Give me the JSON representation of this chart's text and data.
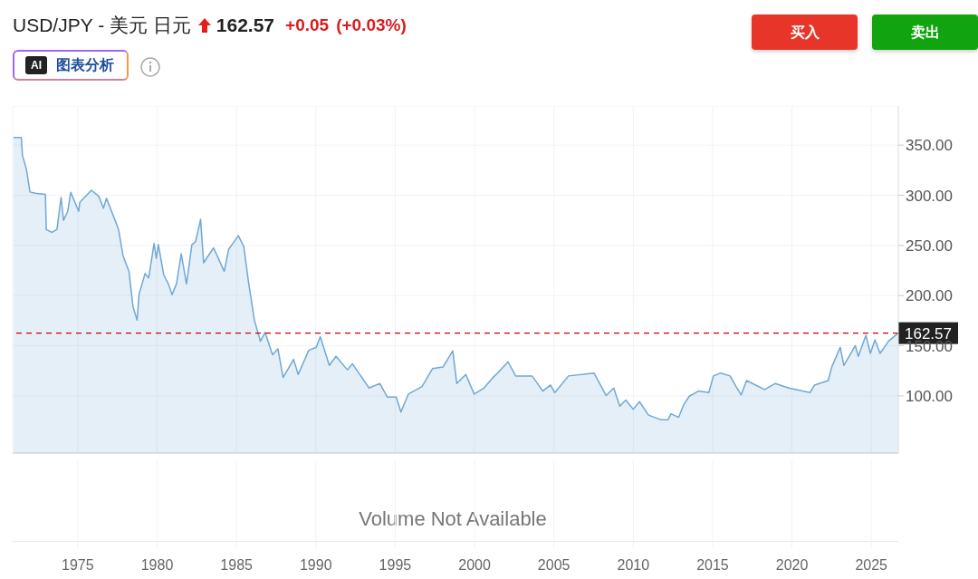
{
  "chart_data": {
    "type": "area",
    "title": "USD/JPY - 美元 日元",
    "annotations": [
      "162.57",
      "+0.05",
      "(+0.03%)",
      "AI",
      "图表分析",
      "买入",
      "卖出",
      "Volume Not Available"
    ],
    "x": [
      1970.95,
      1971.44,
      1971.52,
      1971.76,
      1971.99,
      1972.33,
      1972.96,
      1973.02,
      1973.38,
      1973.69,
      1973.95,
      1974.1,
      1974.37,
      1974.56,
      1975.06,
      1975.13,
      1975.86,
      1976.33,
      1976.62,
      1976.81,
      1977.28,
      1977.57,
      1977.85,
      1978.23,
      1978.48,
      1978.74,
      1978.86,
      1979.24,
      1979.47,
      1979.81,
      1979.95,
      1980.08,
      1980.42,
      1980.71,
      1980.94,
      1981.22,
      1981.52,
      1981.85,
      1982.19,
      1982.42,
      1982.74,
      1982.93,
      1983.56,
      1984.23,
      1984.51,
      1985.12,
      1985.46,
      1985.75,
      1986.13,
      1986.51,
      1986.8,
      1987.27,
      1987.61,
      1987.94,
      1988.6,
      1988.89,
      1989.55,
      1990.03,
      1990.28,
      1990.85,
      1991.27,
      1991.99,
      1992.31,
      1993.36,
      1994.03,
      1994.5,
      1995.07,
      1995.36,
      1995.83,
      1996.69,
      1997.36,
      1998.02,
      1998.63,
      1998.88,
      1999.45,
      1999.98,
      2000.59,
      2001.16,
      2001.45,
      2002.11,
      2002.59,
      2003.63,
      2004.3,
      2004.78,
      2005.06,
      2005.92,
      2007.53,
      2008.29,
      2008.77,
      2009.15,
      2009.53,
      2010.0,
      2010.39,
      2010.96,
      2011.72,
      2012.19,
      2012.38,
      2012.86,
      2013.18,
      2013.53,
      2014.1,
      2014.76,
      2015.05,
      2015.52,
      2016.1,
      2016.48,
      2016.8,
      2017.14,
      2018.28,
      2018.95,
      2019.8,
      2021.14,
      2021.42,
      2022.28,
      2022.51,
      2023.04,
      2023.27,
      2023.99,
      2024.18,
      2024.66,
      2024.94,
      2025.23,
      2025.55,
      2026.08,
      2026.69
    ],
    "series": [
      {
        "color": "#6fa8d6",
        "values": [
          357.5,
          357.5,
          339.4,
          326.5,
          303.3,
          302,
          301,
          265.8,
          263,
          266,
          298,
          275,
          284,
          303,
          284,
          293,
          305,
          299,
          287,
          297,
          278,
          266,
          240,
          224,
          189,
          175.5,
          201,
          222,
          217.6,
          252,
          237,
          251,
          220.5,
          211.6,
          201,
          211.6,
          241.7,
          211.6,
          250.7,
          253.7,
          276,
          232.7,
          247.6,
          224,
          246.3,
          259.7,
          249,
          214.6,
          175.5,
          154.4,
          163.4,
          141,
          147,
          118.3,
          136.4,
          121.4,
          145.4,
          148.5,
          159,
          130.4,
          139.4,
          126,
          131.9,
          107.8,
          112.4,
          98.8,
          98.8,
          83.8,
          101.8,
          109.3,
          127.3,
          128.9,
          144.9,
          112.4,
          121.4,
          101.8,
          107.8,
          118.3,
          122.8,
          134,
          119.9,
          119.9,
          104.8,
          110.8,
          103.3,
          119.9,
          122.8,
          100.3,
          107.8,
          89.8,
          95.8,
          86.7,
          94.3,
          80.8,
          76.3,
          76.3,
          82.2,
          78.6,
          91.2,
          99.7,
          104.8,
          103.3,
          119.9,
          122.8,
          119.9,
          109.3,
          101,
          115.3,
          106.3,
          112.4,
          107.8,
          103.3,
          110.8,
          115.3,
          128.9,
          148.5,
          130.4,
          150.1,
          139.4,
          160.5,
          142.4,
          156,
          142.4,
          154.4,
          162.57
        ]
      }
    ],
    "xlim": [
      1970.9,
      2026.7
    ],
    "xticks": [
      1975,
      1980,
      1985,
      1990,
      1995,
      2000,
      2005,
      2010,
      2015,
      2020,
      2025
    ],
    "ylim": [
      43,
      389
    ],
    "yticks": [
      {
        "value": 100,
        "label": "100.00"
      },
      {
        "value": 150,
        "label": "150.00"
      },
      {
        "value": 200,
        "label": "200.00"
      },
      {
        "value": 250,
        "label": "250.00"
      },
      {
        "value": 300,
        "label": "300.00"
      },
      {
        "value": 350,
        "label": "350.00"
      }
    ],
    "ref_lines": [
      {
        "axis": "y",
        "value": 162.57,
        "label": "162.57",
        "color": "#cc0000",
        "line_style": "dashed"
      }
    ],
    "grid": true
  }
}
